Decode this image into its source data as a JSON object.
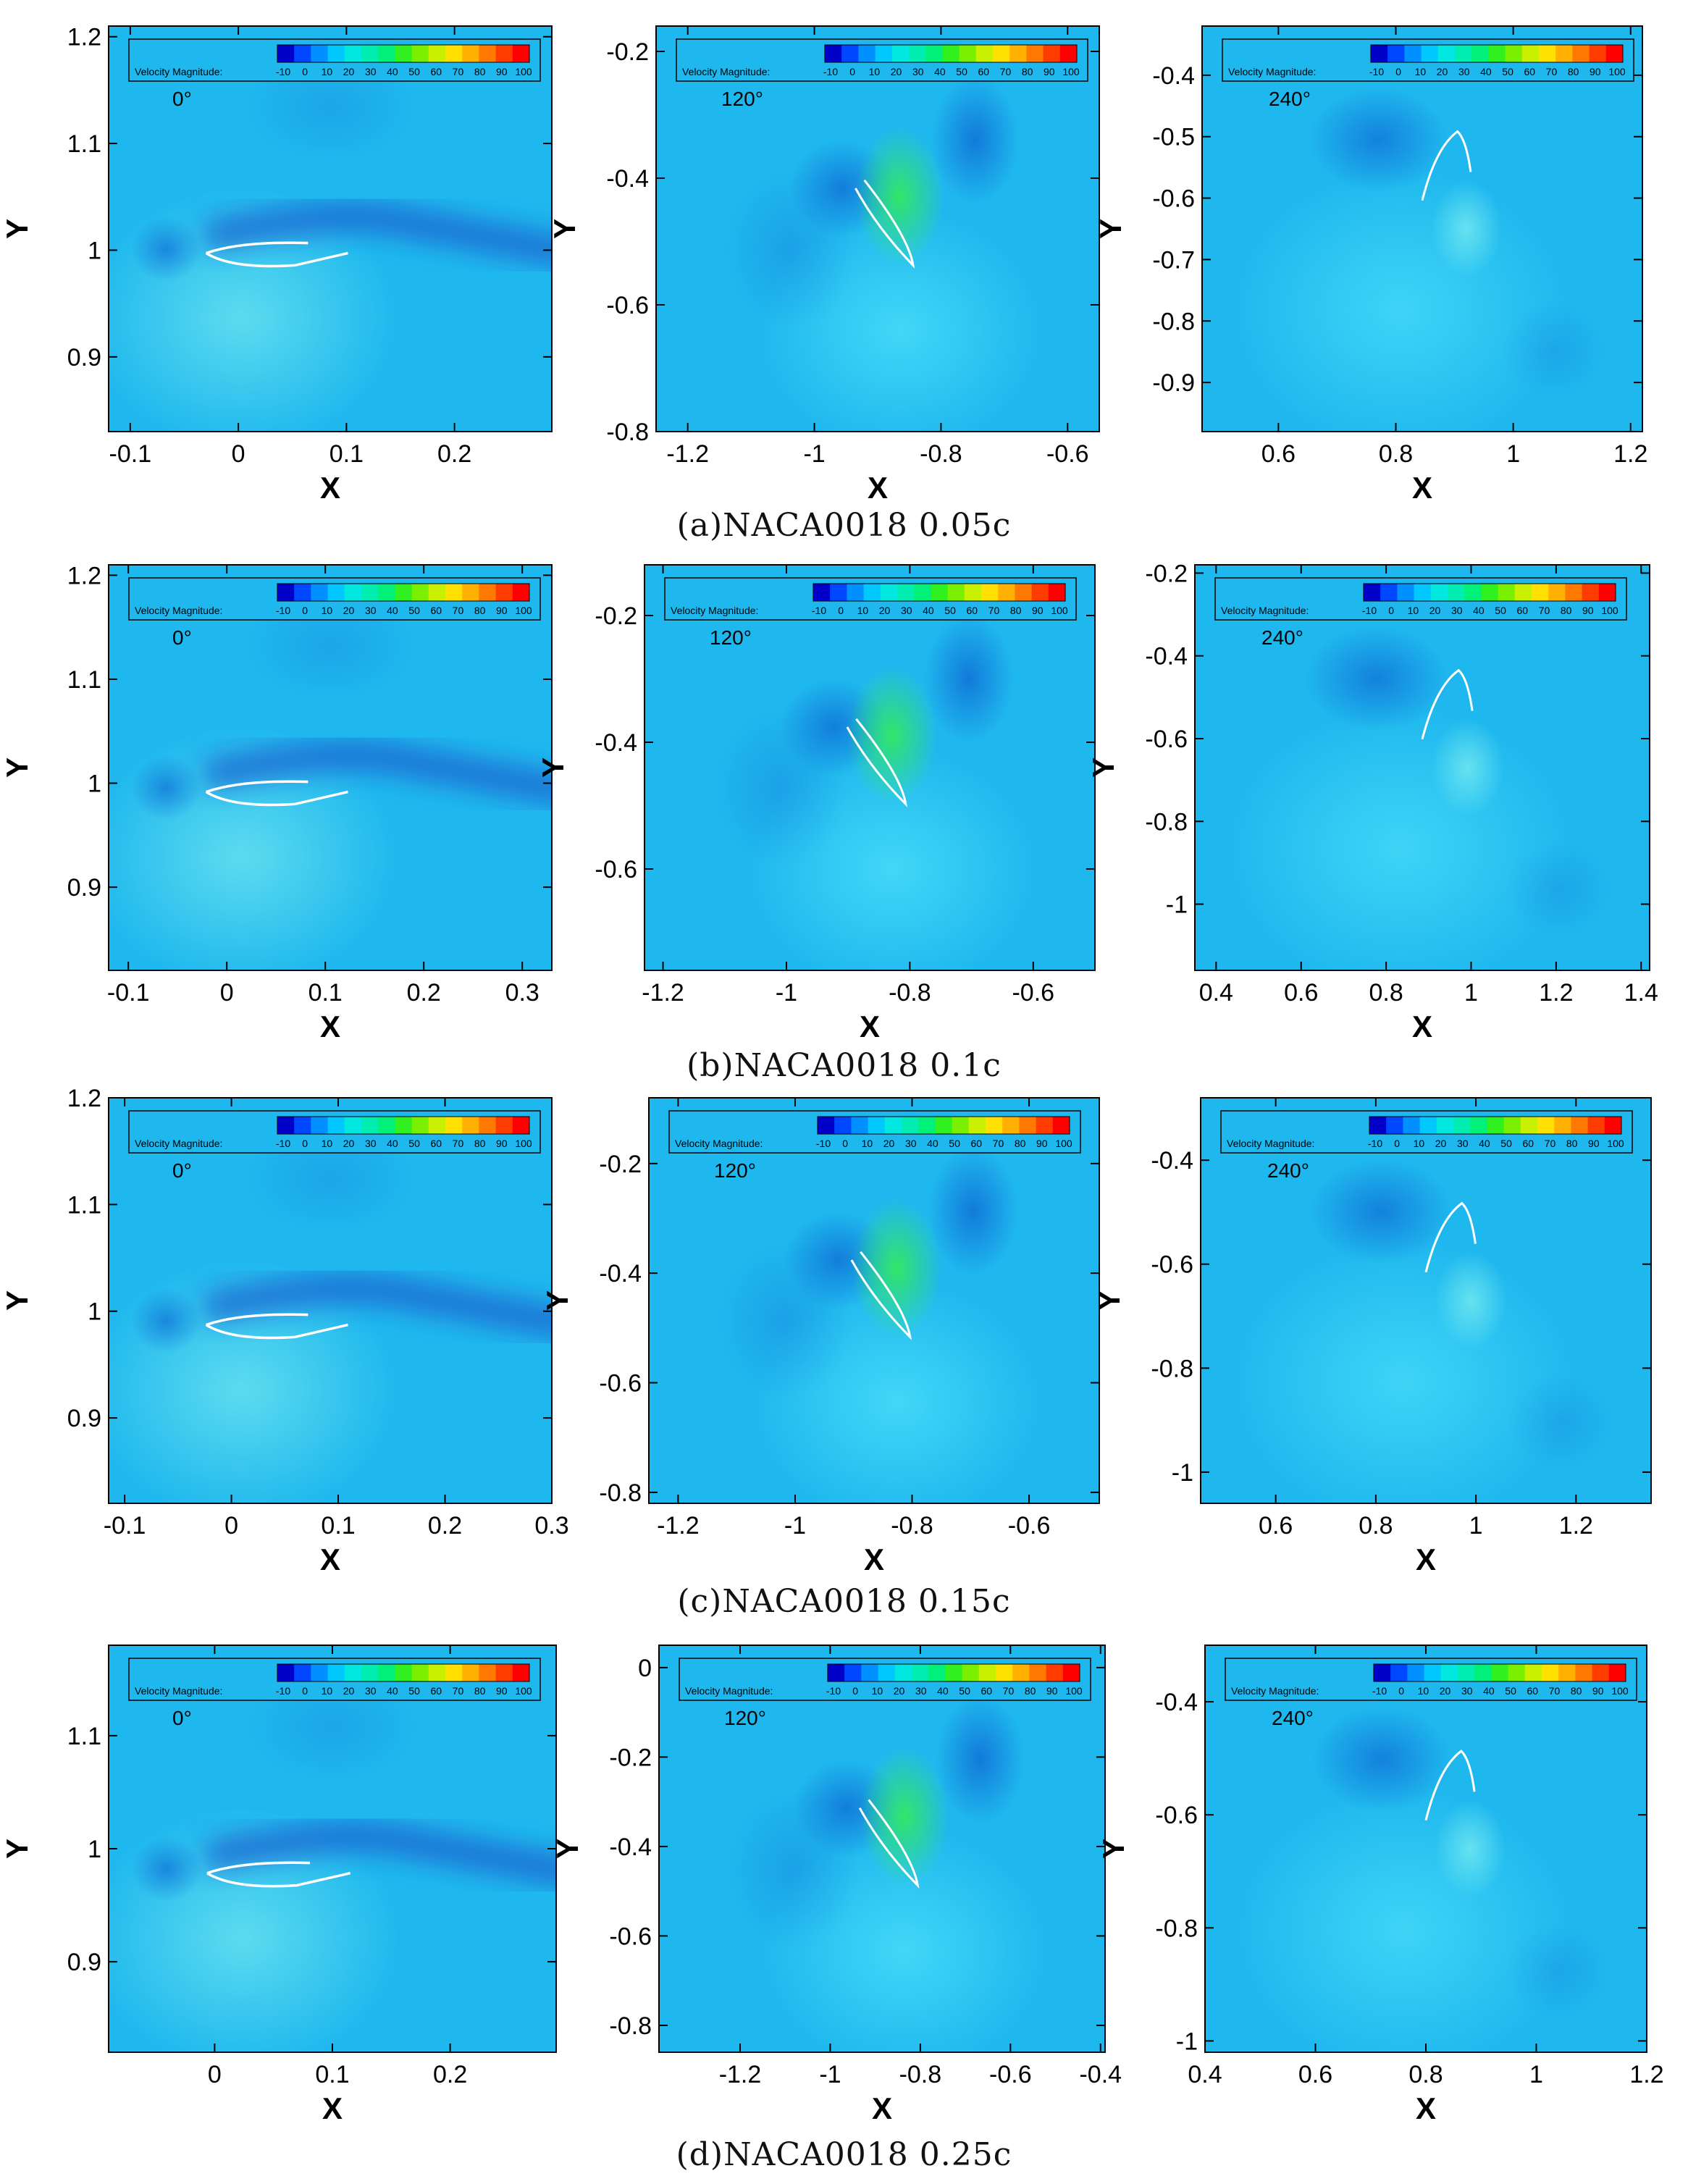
{
  "colorbar": {
    "label": "Velocity Magnitude:",
    "ticks": [
      "-10",
      "0",
      "10",
      "20",
      "30",
      "40",
      "50",
      "60",
      "70",
      "80",
      "90",
      "100"
    ],
    "colors": [
      "#0000c8",
      "#0048ff",
      "#0090ff",
      "#00c8ff",
      "#00e8e0",
      "#00ecb0",
      "#00f07a",
      "#30f020",
      "#7af000",
      "#c8f000",
      "#ffe000",
      "#ffb000",
      "#ff7800",
      "#ff3c00",
      "#ff0000"
    ]
  },
  "field_color": "#1fb8ee",
  "rows": [
    {
      "caption": "(a)NACA0018  0.05c",
      "panels": [
        {
          "angle": "0°",
          "xlabel": "X",
          "ylabel": "Y",
          "xlim": [
            -0.12,
            0.29
          ],
          "ylim": [
            0.83,
            1.21
          ],
          "xticks": [
            "-0.1",
            "0",
            "0.1",
            "0.2"
          ],
          "xtick_values": [
            -0.1,
            0,
            0.1,
            0.2
          ],
          "yticks": [
            "0.9",
            "1",
            "1.1",
            "1.2"
          ],
          "ytick_values": [
            0.9,
            1,
            1.1,
            1.2
          ]
        },
        {
          "angle": "120°",
          "xlabel": "X",
          "ylabel": "Y",
          "xlim": [
            -1.25,
            -0.55
          ],
          "ylim": [
            -0.8,
            -0.16
          ],
          "xticks": [
            "-1.2",
            "-1",
            "-0.8",
            "-0.6"
          ],
          "xtick_values": [
            -1.2,
            -1,
            -0.8,
            -0.6
          ],
          "yticks": [
            "-0.8",
            "-0.6",
            "-0.4",
            "-0.2"
          ],
          "ytick_values": [
            -0.8,
            -0.6,
            -0.4,
            -0.2
          ]
        },
        {
          "angle": "240°",
          "xlabel": "X",
          "ylabel": "Y",
          "xlim": [
            0.47,
            1.22
          ],
          "ylim": [
            -0.98,
            -0.32
          ],
          "xticks": [
            "0.6",
            "0.8",
            "1",
            "1.2"
          ],
          "xtick_values": [
            0.6,
            0.8,
            1,
            1.2
          ],
          "yticks": [
            "-0.9",
            "-0.8",
            "-0.7",
            "-0.6",
            "-0.5",
            "-0.4"
          ],
          "ytick_values": [
            -0.9,
            -0.8,
            -0.7,
            -0.6,
            -0.5,
            -0.4
          ]
        }
      ]
    },
    {
      "caption": "(b)NACA0018  0.1c",
      "panels": [
        {
          "angle": "0°",
          "xlabel": "X",
          "ylabel": "Y",
          "xlim": [
            -0.12,
            0.33
          ],
          "ylim": [
            0.82,
            1.21
          ],
          "xticks": [
            "-0.1",
            "0",
            "0.1",
            "0.2",
            "0.3"
          ],
          "xtick_values": [
            -0.1,
            0,
            0.1,
            0.2,
            0.3
          ],
          "yticks": [
            "0.9",
            "1",
            "1.1",
            "1.2"
          ],
          "ytick_values": [
            0.9,
            1,
            1.1,
            1.2
          ]
        },
        {
          "angle": "120°",
          "xlabel": "X",
          "ylabel": "Y",
          "xlim": [
            -1.23,
            -0.5
          ],
          "ylim": [
            -0.76,
            -0.12
          ],
          "xticks": [
            "-1.2",
            "-1",
            "-0.8",
            "-0.6"
          ],
          "xtick_values": [
            -1.2,
            -1,
            -0.8,
            -0.6
          ],
          "yticks": [
            "-0.6",
            "-0.4",
            "-0.2"
          ],
          "ytick_values": [
            -0.6,
            -0.4,
            -0.2
          ]
        },
        {
          "angle": "240°",
          "xlabel": "X",
          "ylabel": "Y",
          "xlim": [
            0.35,
            1.42
          ],
          "ylim": [
            -1.16,
            -0.18
          ],
          "xticks": [
            "0.4",
            "0.6",
            "0.8",
            "1",
            "1.2",
            "1.4"
          ],
          "xtick_values": [
            0.4,
            0.6,
            0.8,
            1,
            1.2,
            1.4
          ],
          "yticks": [
            "-1",
            "-0.8",
            "-0.6",
            "-0.4",
            "-0.2"
          ],
          "ytick_values": [
            -1,
            -0.8,
            -0.6,
            -0.4,
            -0.2
          ]
        }
      ]
    },
    {
      "caption": "(c)NACA0018  0.15c",
      "panels": [
        {
          "angle": "0°",
          "xlabel": "X",
          "ylabel": "Y",
          "xlim": [
            -0.115,
            0.3
          ],
          "ylim": [
            0.82,
            1.2
          ],
          "xticks": [
            "-0.1",
            "0",
            "0.1",
            "0.2",
            "0.3"
          ],
          "xtick_values": [
            -0.1,
            0,
            0.1,
            0.2,
            0.3
          ],
          "yticks": [
            "0.9",
            "1",
            "1.1",
            "1.2"
          ],
          "ytick_values": [
            0.9,
            1,
            1.1,
            1.2
          ]
        },
        {
          "angle": "120°",
          "xlabel": "X",
          "ylabel": "Y",
          "xlim": [
            -1.25,
            -0.48
          ],
          "ylim": [
            -0.82,
            -0.08
          ],
          "xticks": [
            "-1.2",
            "-1",
            "-0.8",
            "-0.6"
          ],
          "xtick_values": [
            -1.2,
            -1,
            -0.8,
            -0.6
          ],
          "yticks": [
            "-0.8",
            "-0.6",
            "-0.4",
            "-0.2"
          ],
          "ytick_values": [
            -0.8,
            -0.6,
            -0.4,
            -0.2
          ]
        },
        {
          "angle": "240°",
          "xlabel": "X",
          "ylabel": "Y",
          "xlim": [
            0.45,
            1.35
          ],
          "ylim": [
            -1.06,
            -0.28
          ],
          "xticks": [
            "0.6",
            "0.8",
            "1",
            "1.2"
          ],
          "xtick_values": [
            0.6,
            0.8,
            1,
            1.2
          ],
          "yticks": [
            "-1",
            "-0.8",
            "-0.6",
            "-0.4"
          ],
          "ytick_values": [
            -1,
            -0.8,
            -0.6,
            -0.4
          ]
        }
      ]
    },
    {
      "caption": "(d)NACA0018  0.25c",
      "panels": [
        {
          "angle": "0°",
          "xlabel": "X",
          "ylabel": "Y",
          "xlim": [
            -0.09,
            0.29
          ],
          "ylim": [
            0.82,
            1.18
          ],
          "xticks": [
            "0",
            "0.1",
            "0.2"
          ],
          "xtick_values": [
            0,
            0.1,
            0.2
          ],
          "yticks": [
            "0.9",
            "1",
            "1.1"
          ],
          "ytick_values": [
            0.9,
            1,
            1.1
          ]
        },
        {
          "angle": "120°",
          "xlabel": "X",
          "ylabel": "Y",
          "xlim": [
            -1.38,
            -0.39
          ],
          "ylim": [
            -0.86,
            0.05
          ],
          "xticks": [
            "-1.2",
            "-1",
            "-0.8",
            "-0.6",
            "-0.4"
          ],
          "xtick_values": [
            -1.2,
            -1,
            -0.8,
            -0.6,
            -0.4
          ],
          "yticks": [
            "-0.8",
            "-0.6",
            "-0.4",
            "-0.2",
            "0"
          ],
          "ytick_values": [
            -0.8,
            -0.6,
            -0.4,
            -0.2,
            0
          ]
        },
        {
          "angle": "240°",
          "xlabel": "X",
          "ylabel": "Y",
          "xlim": [
            0.4,
            1.2
          ],
          "ylim": [
            -1.02,
            -0.3
          ],
          "xticks": [
            "0.4",
            "0.6",
            "0.8",
            "1",
            "1.2"
          ],
          "xtick_values": [
            0.4,
            0.6,
            0.8,
            1,
            1.2
          ],
          "yticks": [
            "-1",
            "-0.8",
            "-0.6",
            "-0.4"
          ],
          "ytick_values": [
            -1,
            -0.8,
            -0.6,
            -0.4
          ]
        }
      ]
    }
  ]
}
